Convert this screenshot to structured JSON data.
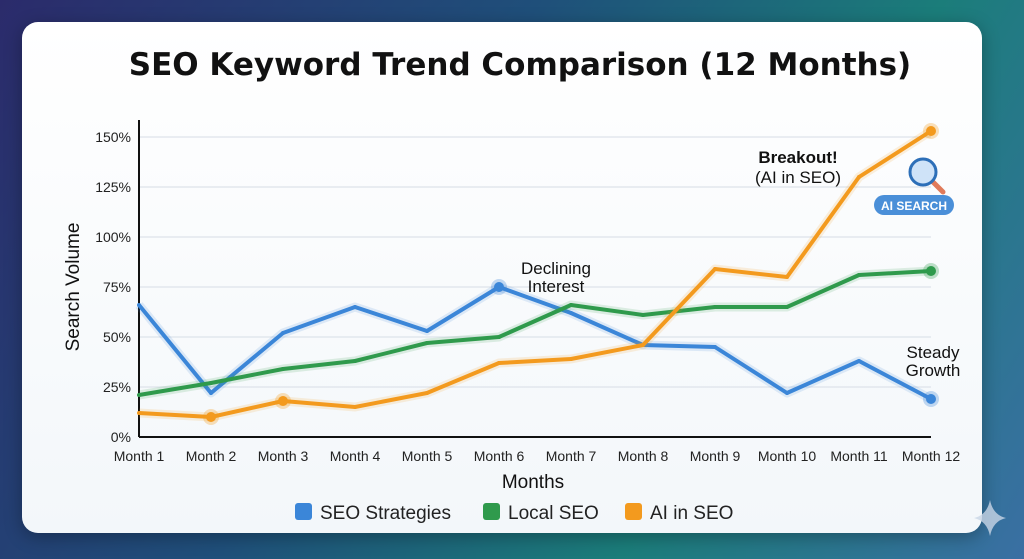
{
  "chart_data": {
    "type": "line",
    "title": "SEO Keyword Trend Comparison (12 Months)",
    "xlabel": "Months",
    "ylabel": "Search Volume",
    "categories": [
      "Month 1",
      "Month 2",
      "Month 3",
      "Month 4",
      "Month 5",
      "Month 6",
      "Month 7",
      "Month 8",
      "Month 9",
      "Month 10",
      "Month 11",
      "Month 12"
    ],
    "ylim": [
      0,
      150
    ],
    "yticks": [
      "0%",
      "25%",
      "50%",
      "75%",
      "100%",
      "125%",
      "150%"
    ],
    "ytick_values": [
      0,
      25,
      50,
      75,
      100,
      125,
      150
    ],
    "grid": true,
    "legend_position": "bottom",
    "series": [
      {
        "name": "SEO Strategies",
        "color": "#3b86d8",
        "values": [
          66,
          22,
          52,
          65,
          53,
          75,
          62,
          46,
          45,
          22,
          38,
          19
        ],
        "highlight": [
          5,
          11
        ]
      },
      {
        "name": "Local SEO",
        "color": "#2f9a4c",
        "values": [
          21,
          27,
          34,
          38,
          47,
          50,
          66,
          61,
          65,
          65,
          81,
          83
        ],
        "highlight": [
          11
        ]
      },
      {
        "name": "AI in SEO",
        "color": "#f39a1e",
        "values": [
          12,
          10,
          18,
          15,
          22,
          37,
          39,
          46,
          84,
          80,
          130,
          153
        ],
        "highlight": [
          1,
          2,
          11
        ]
      }
    ],
    "annotations": {
      "declining": [
        "Declining",
        "Interest"
      ],
      "breakout_title": "Breakout!",
      "breakout_sub": "(AI in SEO)",
      "steady": [
        "Steady",
        "Growth"
      ],
      "badge": "AI SEARCH"
    }
  }
}
